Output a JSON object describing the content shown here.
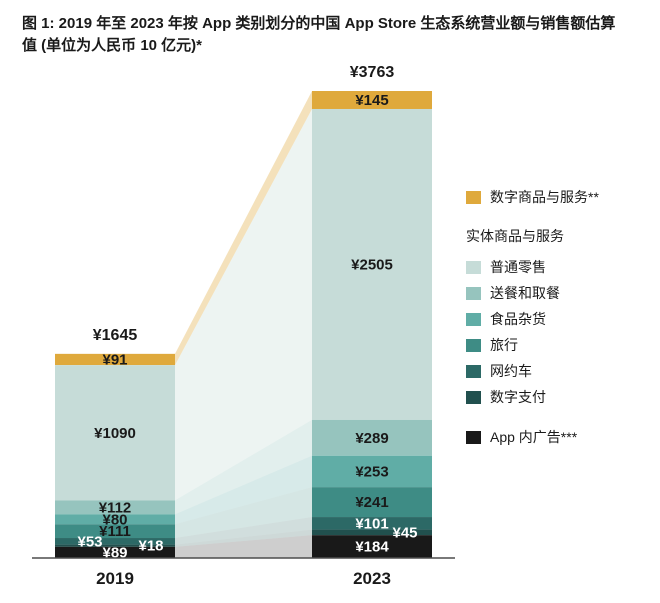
{
  "title": {
    "line1": "图 1: 2019 年至 2023 年按 App 类别划分的中国 App Store 生态系统营业额与销售额估算",
    "line2": "值 (单位为人民币 10 亿元)*"
  },
  "chart_data": {
    "type": "bar",
    "variant": "stacked-bars-with-flow-bands",
    "title": "图 1: 2019 年至 2023 年按 App 类别划分的中国 App Store 生态系统营业额与销售额估算值 (单位为人民币 10 亿元)*",
    "unit": "人民币 10 亿元",
    "currency_prefix": "¥",
    "categories": [
      "2019",
      "2023"
    ],
    "totals": [
      1645,
      3763
    ],
    "axis_color": "#4d4d4d",
    "series": [
      {
        "name": "数字商品与服务",
        "color": "#DFA93C",
        "flow_opacity": 0.35,
        "label_color": "#1A1A1A",
        "values": [
          91,
          145
        ]
      },
      {
        "name": "普通零售",
        "color": "#C6DCD8",
        "flow_opacity": 0.32,
        "label_color": "#1A1A1A",
        "values": [
          1090,
          2505
        ]
      },
      {
        "name": "送餐和取餐",
        "color": "#96C4BE",
        "flow_opacity": 0.28,
        "label_color": "#1A1A1A",
        "values": [
          112,
          289
        ]
      },
      {
        "name": "食品杂货",
        "color": "#60ADA6",
        "flow_opacity": 0.25,
        "label_color": "#1A1A1A",
        "values": [
          80,
          253
        ]
      },
      {
        "name": "旅行",
        "color": "#3E8C85",
        "flow_opacity": 0.22,
        "label_color": "#1A1A1A",
        "values": [
          111,
          241
        ]
      },
      {
        "name": "网约车",
        "color": "#2C6966",
        "flow_opacity": 0.22,
        "label_color": "#FFFFFF",
        "values": [
          53,
          101
        ]
      },
      {
        "name": "数字支付",
        "color": "#21504E",
        "flow_opacity": 0.22,
        "label_color": "#FFFFFF",
        "values": [
          18,
          45
        ]
      },
      {
        "name": "App 内广告",
        "color": "#191919",
        "flow_opacity": 0.21,
        "label_color": "#FFFFFF",
        "values": [
          89,
          184
        ]
      }
    ]
  },
  "legend": {
    "digital": {
      "label": "数字商品与服务**",
      "color": "#DFA93C"
    },
    "physical_header": "实体商品与服务",
    "physical_items": [
      {
        "label": "普通零售",
        "color": "#C6DCD8"
      },
      {
        "label": "送餐和取餐",
        "color": "#96C4BE"
      },
      {
        "label": "食品杂货",
        "color": "#60ADA6"
      },
      {
        "label": "旅行",
        "color": "#3E8C85"
      },
      {
        "label": "网约车",
        "color": "#2C6966"
      },
      {
        "label": "数字支付",
        "color": "#21504E"
      }
    ],
    "ads": {
      "label": "App 内广告***",
      "color": "#191919"
    }
  }
}
